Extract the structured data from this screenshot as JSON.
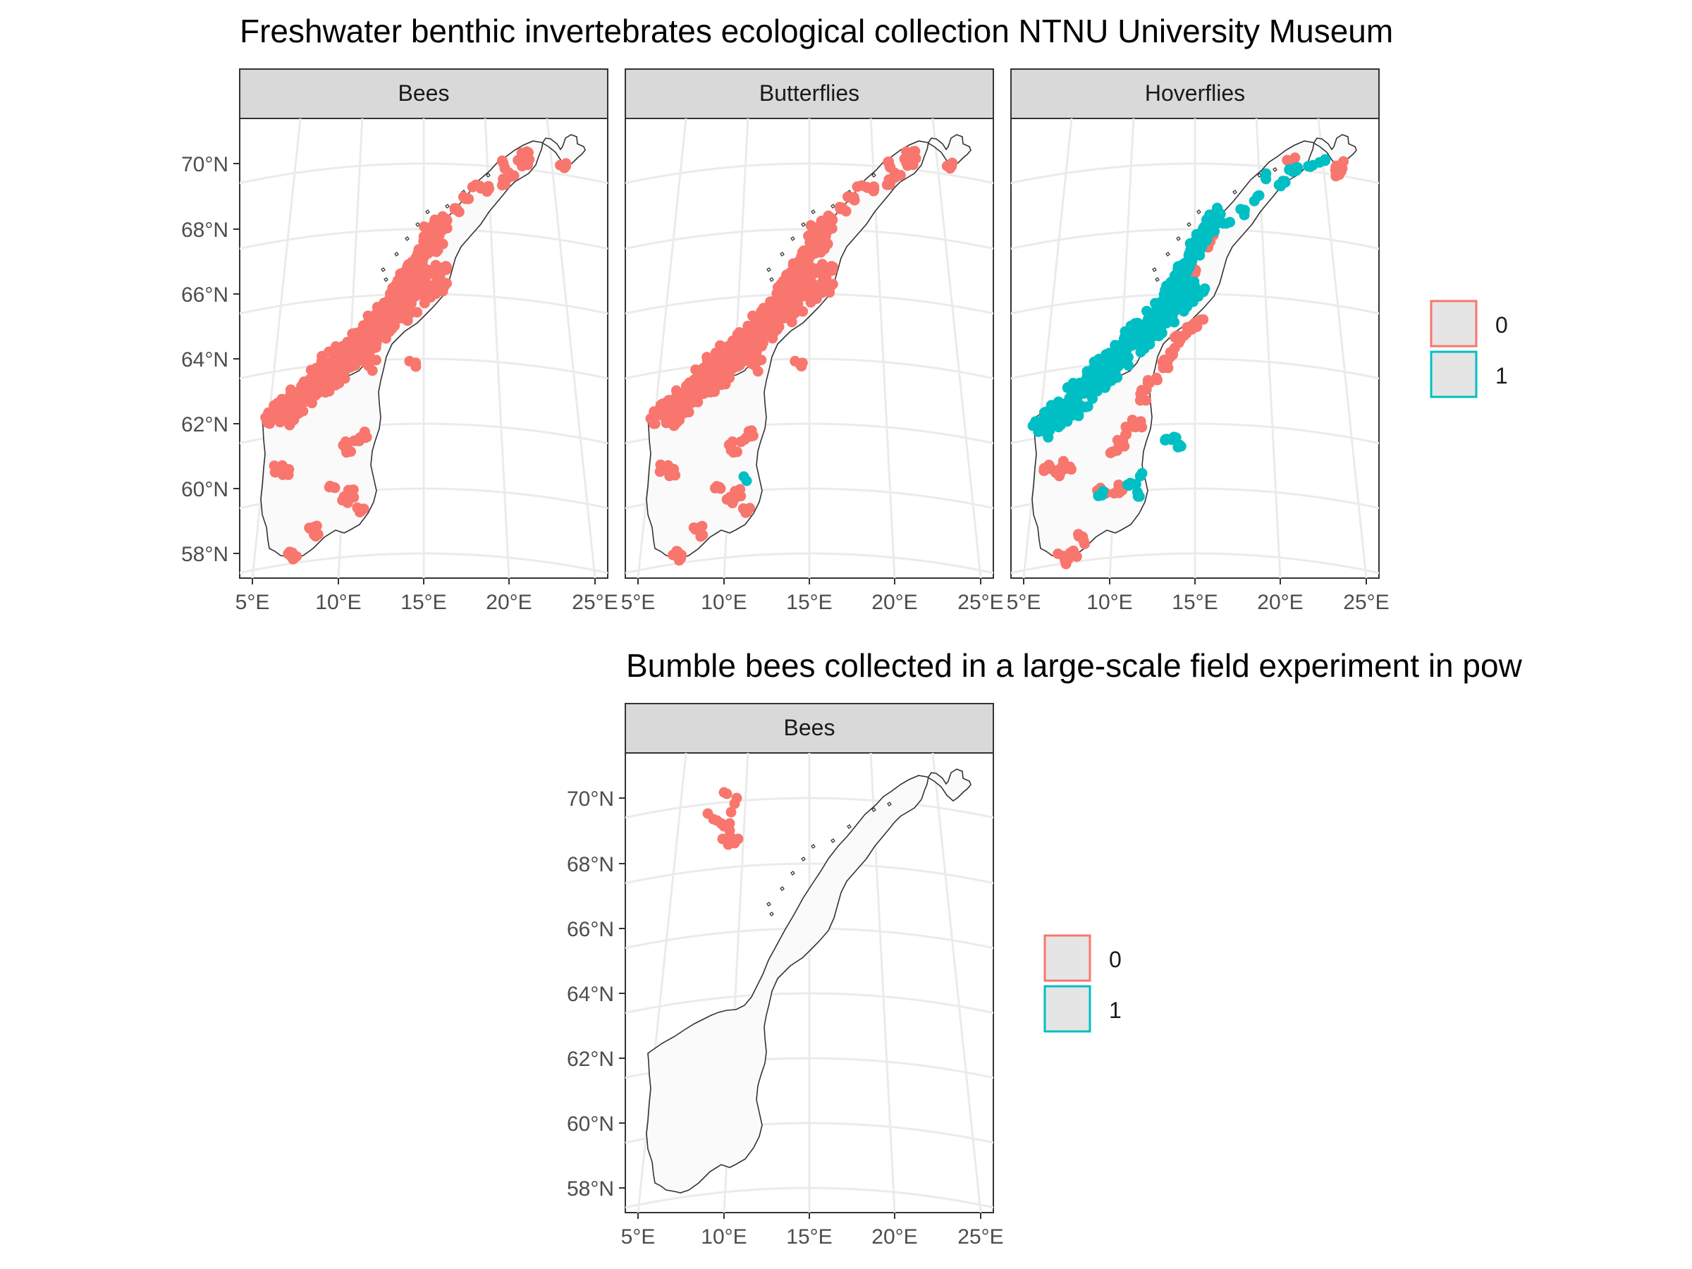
{
  "figures": [
    {
      "title": "Freshwater benthic invertebrates ecological collection NTNU University Museum",
      "panels": [
        {
          "strip": "Bees",
          "points": {
            "0": "dense",
            "1": "none"
          }
        },
        {
          "strip": "Butterflies",
          "points": {
            "0": "dense",
            "1": "few"
          }
        },
        {
          "strip": "Hoverflies",
          "points": {
            "0": "dense",
            "1": "dense"
          }
        }
      ],
      "legend": {
        "entries": [
          "0",
          "1"
        ]
      }
    },
    {
      "title": "Bumble bees collected in a large-scale field experiment in pow",
      "panels": [
        {
          "strip": "Bees",
          "points": {
            "0": "sparse",
            "1": "none"
          }
        }
      ],
      "legend": {
        "entries": [
          "0",
          "1"
        ]
      }
    }
  ],
  "axes": {
    "lat_ticks": [
      "70°N",
      "68°N",
      "66°N",
      "64°N",
      "62°N",
      "60°N",
      "58°N"
    ],
    "lon_ticks": [
      "5°E",
      "10°E",
      "15°E",
      "20°E",
      "25°E"
    ]
  },
  "colors": {
    "group_0": "#F8766D",
    "group_1": "#00BFC4",
    "strip_fill": "#D9D9D9",
    "grid": "#EBEBEB",
    "land_fill": "#FAFAFA",
    "land_stroke": "#333333"
  }
}
